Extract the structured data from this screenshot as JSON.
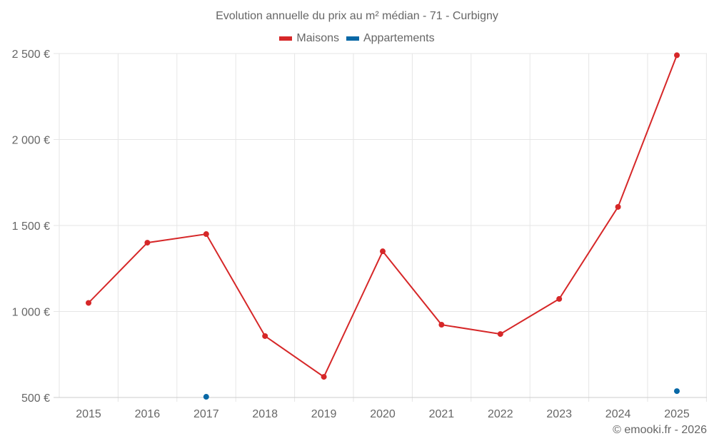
{
  "title": "Evolution annuelle du prix au m² médian - 71 - Curbigny",
  "legend": [
    {
      "label": "Maisons",
      "color": "#d62728"
    },
    {
      "label": "Appartements",
      "color": "#0868a6"
    }
  ],
  "footer": "© emooki.fr - 2026",
  "chart_data": {
    "type": "line",
    "title": "Evolution annuelle du prix au m² médian - 71 - Curbigny",
    "xlabel": "",
    "ylabel": "",
    "categories": [
      "2015",
      "2016",
      "2017",
      "2018",
      "2019",
      "2020",
      "2021",
      "2022",
      "2023",
      "2024",
      "2025"
    ],
    "series": [
      {
        "name": "Maisons",
        "color": "#d62728",
        "values": [
          1050,
          1400,
          1450,
          857,
          620,
          1350,
          923,
          869,
          1073,
          1608,
          2490
        ]
      },
      {
        "name": "Appartements",
        "color": "#0868a6",
        "values": [
          null,
          null,
          504,
          null,
          null,
          null,
          null,
          null,
          null,
          null,
          537
        ]
      }
    ],
    "yticks": [
      500,
      1000,
      1500,
      2000,
      2500
    ],
    "ytick_labels": [
      "500 €",
      "1 000 €",
      "1 500 €",
      "2 000 €",
      "2 500 €"
    ],
    "ylim": [
      500,
      2500
    ],
    "grid": true,
    "legend_position": "top"
  }
}
